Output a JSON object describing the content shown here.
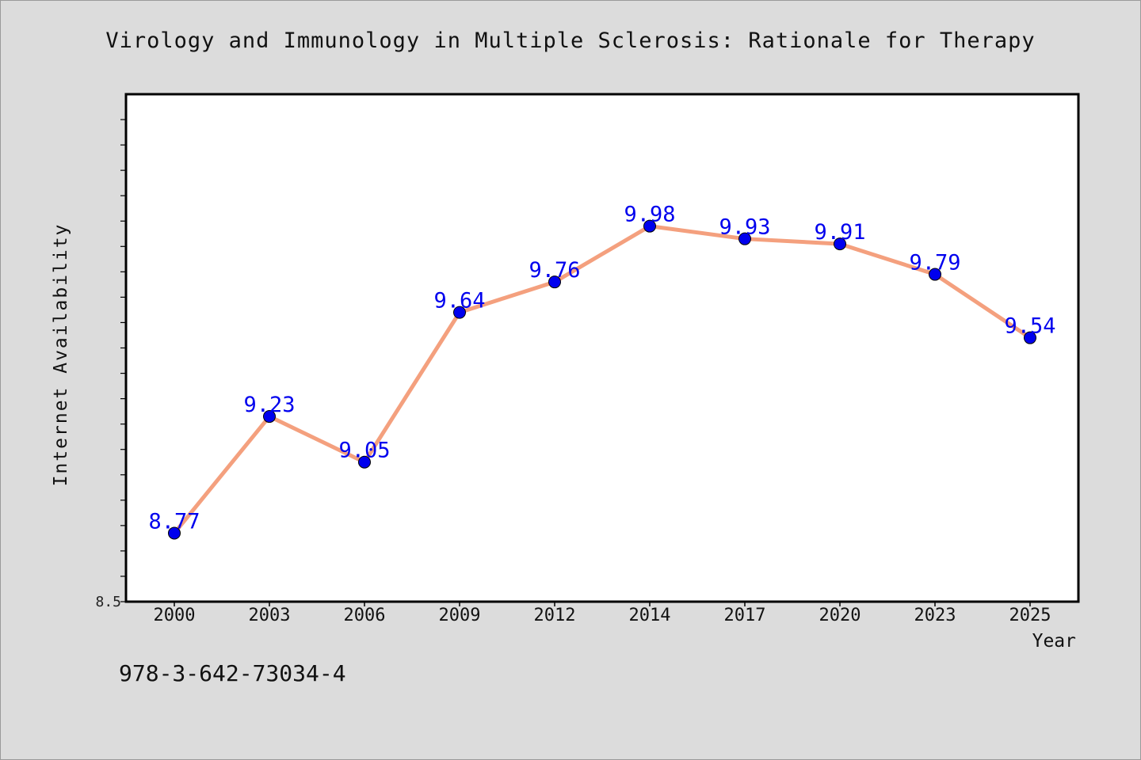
{
  "chart_data": {
    "type": "line",
    "title": "Virology and Immunology in Multiple Sclerosis: Rationale for Therapy",
    "xlabel": "Year",
    "ylabel": "Internet Availability",
    "categories": [
      "2000",
      "2003",
      "2006",
      "2009",
      "2012",
      "2014",
      "2017",
      "2020",
      "2023",
      "2025"
    ],
    "series": [
      {
        "values": [
          8.77,
          9.23,
          9.05,
          9.64,
          9.76,
          9.98,
          9.93,
          9.91,
          9.79,
          9.54
        ]
      }
    ],
    "data_labels": [
      "8.77",
      "9.23",
      "9.05",
      "9.64",
      "9.76",
      "9.98",
      "9.93",
      "9.91",
      "9.79",
      "9.54"
    ],
    "y_tick_labels": [
      "8.5"
    ],
    "ylim": [
      8.5,
      10.5
    ],
    "grid": false,
    "legend": "none",
    "line_color": "#f4a07e",
    "marker_color": "#0000ee",
    "label_color": "#0000ee"
  },
  "footer": {
    "isbn": "978-3-642-73034-4"
  }
}
